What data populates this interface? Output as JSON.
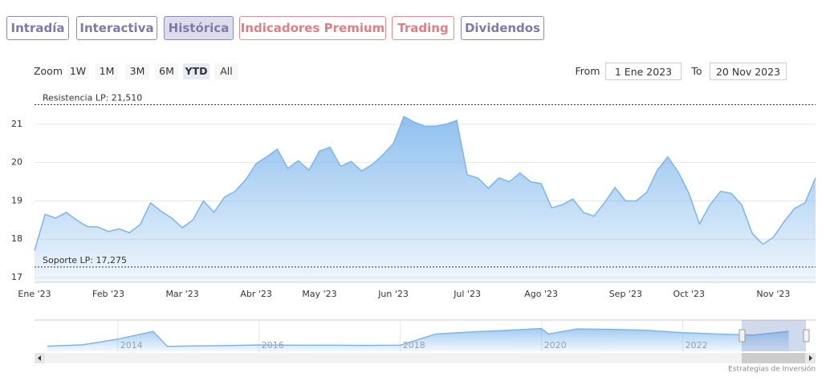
{
  "tabs": [
    "Intradía",
    "Interactiva",
    "Histórica",
    "Indicadores Premium",
    "Trading",
    "Dividendos"
  ],
  "range_selector": {
    "label": "Zoom",
    "buttons": [
      "1W",
      "1M",
      "3M",
      "6M",
      "YTD",
      "All"
    ]
  },
  "date_range": {
    "from_label": "From",
    "from": "1 Ene 2023",
    "to_label": "To",
    "to": "20 Nov 2023"
  },
  "chart_data": [
    {
      "type": "area",
      "color": "#7cb5ec",
      "grid": true,
      "categories": [
        "Ene '23",
        null,
        null,
        null,
        null,
        null,
        null,
        "Feb '23",
        null,
        null,
        null,
        null,
        null,
        null,
        "Mar '23",
        null,
        null,
        null,
        null,
        null,
        null,
        "Abr '23",
        null,
        null,
        null,
        null,
        null,
        "May '23",
        null,
        null,
        null,
        null,
        null,
        null,
        "Jun '23",
        null,
        null,
        null,
        null,
        null,
        null,
        "Jul '23",
        null,
        null,
        null,
        null,
        null,
        null,
        "Ago '23",
        null,
        null,
        null,
        null,
        null,
        null,
        null,
        "Sep '23",
        null,
        null,
        null,
        null,
        null,
        "Oct '23",
        null,
        null,
        null,
        null,
        null,
        null,
        null,
        "Nov '23",
        null,
        null,
        null,
        null
      ],
      "values": [
        17.7,
        18.65,
        18.55,
        18.7,
        18.5,
        18.33,
        18.32,
        18.2,
        18.27,
        18.17,
        18.38,
        18.95,
        18.73,
        18.55,
        18.3,
        18.5,
        19.0,
        18.7,
        19.1,
        19.25,
        19.55,
        19.97,
        20.15,
        20.35,
        19.85,
        20.05,
        19.8,
        20.3,
        20.4,
        19.9,
        20.03,
        19.78,
        19.95,
        20.2,
        20.5,
        21.2,
        21.05,
        20.95,
        20.95,
        21.0,
        21.1,
        19.68,
        19.6,
        19.33,
        19.6,
        19.5,
        19.73,
        19.5,
        19.45,
        18.82,
        18.9,
        19.05,
        18.7,
        18.6,
        18.95,
        19.35,
        19.0,
        19.0,
        19.22,
        19.8,
        20.15,
        19.75,
        19.2,
        18.4,
        18.9,
        19.25,
        19.2,
        18.9,
        18.15,
        17.87,
        18.05,
        18.45,
        18.8,
        18.95,
        19.6
      ],
      "ylim": [
        16.875,
        21.73
      ],
      "yticks": [
        17,
        18,
        19,
        20,
        21
      ],
      "plot_lines": [
        {
          "value": 21.51,
          "label": "Resistencia LP: 21,510"
        },
        {
          "value": 17.275,
          "label": "Soporte LP: 17,275"
        }
      ]
    },
    {
      "type": "area",
      "color": "#7cb5ec",
      "x": [
        2013,
        2013.5,
        2014,
        2014.5,
        2014.7,
        2015,
        2015.5,
        2016,
        2016.5,
        2017,
        2017.5,
        2018,
        2018.5,
        2019,
        2019.5,
        2020,
        2020.1,
        2020.5,
        2021,
        2021.5,
        2022,
        2022.5,
        2023,
        2023.5
      ],
      "values": [
        12.5,
        13.2,
        16.0,
        19.8,
        12.4,
        12.6,
        12.8,
        13.1,
        13.0,
        13.0,
        12.9,
        13.0,
        18.5,
        19.5,
        20.3,
        21.2,
        18.5,
        21.0,
        20.8,
        20.3,
        19.2,
        18.5,
        18.0,
        19.8
      ],
      "xlim": [
        2012.82,
        2023.88
      ],
      "xticks": [
        2014,
        2016,
        2018,
        2020,
        2022
      ],
      "ylim": [
        10,
        25
      ]
    }
  ],
  "credit": "Estrategias de Inversión"
}
